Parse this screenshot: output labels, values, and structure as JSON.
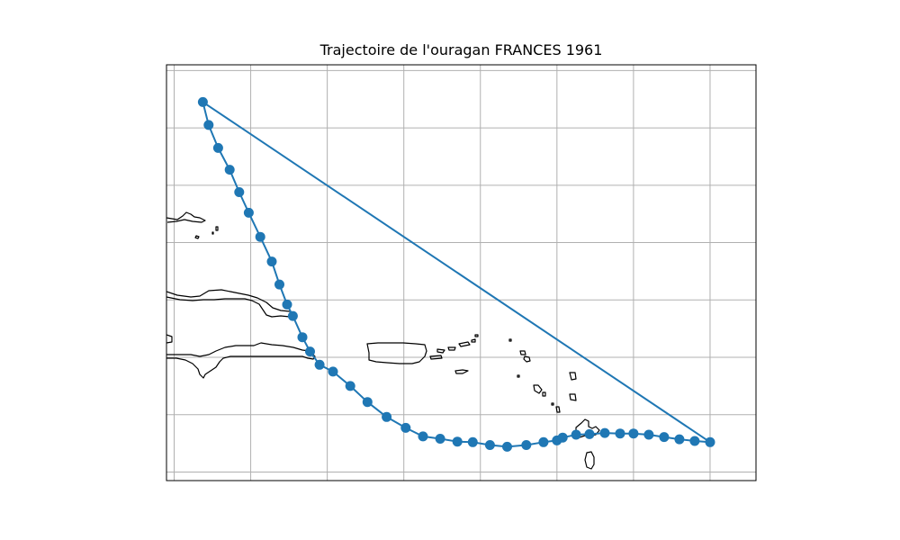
{
  "title": "Trajectoire de l'ouragan FRANCES 1961",
  "map": {
    "extent": {
      "lon": [
        -73.2,
        -57.8
      ],
      "lat": [
        15.85,
        23.1
      ]
    },
    "gridlines": {
      "lon": [
        -73,
        -71,
        -69,
        -67,
        -65,
        -63,
        -61,
        -59
      ],
      "lat": [
        16,
        17,
        18,
        19,
        20,
        21,
        22,
        23
      ]
    },
    "show_tick_labels": false,
    "track_color": "#1f77b4",
    "coast_color": "#000000",
    "grid_color": "#b0b0b0"
  },
  "track": [
    {
      "lon": -72.25,
      "lat": 22.45
    },
    {
      "lon": -72.1,
      "lat": 22.05
    },
    {
      "lon": -71.85,
      "lat": 21.65
    },
    {
      "lon": -71.55,
      "lat": 21.27
    },
    {
      "lon": -71.3,
      "lat": 20.88
    },
    {
      "lon": -71.05,
      "lat": 20.52
    },
    {
      "lon": -70.75,
      "lat": 20.1
    },
    {
      "lon": -70.45,
      "lat": 19.67
    },
    {
      "lon": -70.25,
      "lat": 19.27
    },
    {
      "lon": -70.05,
      "lat": 18.92
    },
    {
      "lon": -69.9,
      "lat": 18.72
    },
    {
      "lon": -69.65,
      "lat": 18.35
    },
    {
      "lon": -69.45,
      "lat": 18.1
    },
    {
      "lon": -69.2,
      "lat": 17.87
    },
    {
      "lon": -68.85,
      "lat": 17.75
    },
    {
      "lon": -68.4,
      "lat": 17.5
    },
    {
      "lon": -67.95,
      "lat": 17.22
    },
    {
      "lon": -67.45,
      "lat": 16.96
    },
    {
      "lon": -66.95,
      "lat": 16.77
    },
    {
      "lon": -66.5,
      "lat": 16.62
    },
    {
      "lon": -66.05,
      "lat": 16.58
    },
    {
      "lon": -65.6,
      "lat": 16.53
    },
    {
      "lon": -65.2,
      "lat": 16.52
    },
    {
      "lon": -64.75,
      "lat": 16.47
    },
    {
      "lon": -64.3,
      "lat": 16.44
    },
    {
      "lon": -63.8,
      "lat": 16.47
    },
    {
      "lon": -63.35,
      "lat": 16.52
    },
    {
      "lon": -63.0,
      "lat": 16.55
    },
    {
      "lon": -62.85,
      "lat": 16.6
    },
    {
      "lon": -62.5,
      "lat": 16.65
    },
    {
      "lon": -62.15,
      "lat": 16.66
    },
    {
      "lon": -61.75,
      "lat": 16.68
    },
    {
      "lon": -61.35,
      "lat": 16.67
    },
    {
      "lon": -61.0,
      "lat": 16.67
    },
    {
      "lon": -60.6,
      "lat": 16.65
    },
    {
      "lon": -60.2,
      "lat": 16.61
    },
    {
      "lon": -59.8,
      "lat": 16.57
    },
    {
      "lon": -59.4,
      "lat": 16.54
    },
    {
      "lon": -59.0,
      "lat": 16.52
    },
    {
      "lon": -72.25,
      "lat": 22.45
    }
  ]
}
